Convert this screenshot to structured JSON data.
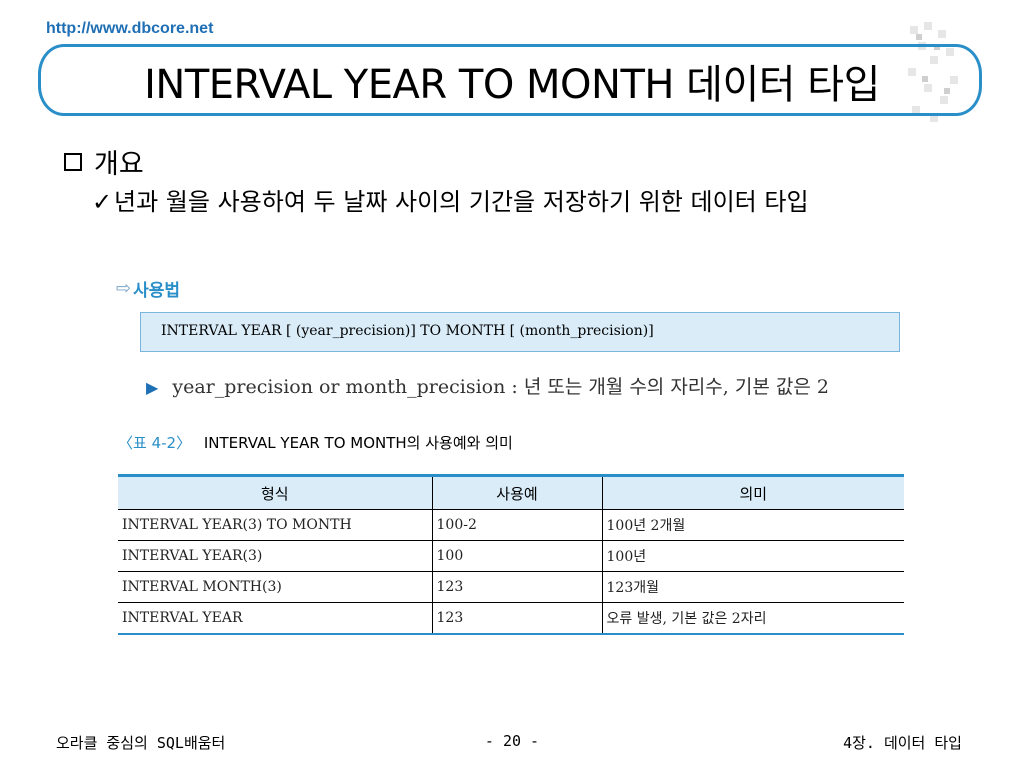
{
  "header": {
    "url": "http://www.dbcore.net",
    "title": "INTERVAL YEAR TO MONTH  데이터 타입"
  },
  "section": {
    "heading": "개요",
    "bullet": "년과 월을 사용하여 두 날짜 사이의 기간을 저장하기 위한 데이터 타입"
  },
  "usage": {
    "label": "사용법",
    "syntax": "INTERVAL YEAR [ (year_precision)]  TO MONTH [ (month_precision)]",
    "note": "year_precision or month_precision : 년 또는 개월 수의 자리수, 기본 값은 2"
  },
  "table": {
    "caption_num": "〈표 4-2〉",
    "caption_text": "INTERVAL YEAR TO MONTH의 사용예와 의미",
    "headers": [
      "형식",
      "사용예",
      "의미"
    ],
    "rows": [
      [
        "INTERVAL YEAR(3) TO MONTH",
        "100-2",
        "100년 2개월"
      ],
      [
        "INTERVAL YEAR(3)",
        "100",
        "100년"
      ],
      [
        "INTERVAL MONTH(3)",
        "123",
        "123개월"
      ],
      [
        "INTERVAL YEAR",
        "123",
        "오류 발생, 기본 값은 2자리"
      ]
    ]
  },
  "footer": {
    "left": "오라클 중심의 SQL배움터",
    "center": "- 20 -",
    "right": "4장. 데이터 타입"
  },
  "colors": {
    "accent": "#2a8fc8",
    "box": "#d9ecf8"
  }
}
